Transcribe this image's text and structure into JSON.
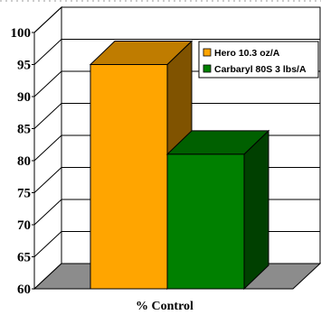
{
  "chart_data": {
    "type": "bar",
    "categories": [
      "% Control"
    ],
    "series": [
      {
        "name": "Hero 10.3 oz/A",
        "values": [
          95
        ],
        "color": "#FFA500"
      },
      {
        "name": "Carbaryl 80S 3 lbs/A",
        "values": [
          81
        ],
        "color": "#008000"
      }
    ],
    "title": "",
    "xlabel": "% Control",
    "ylabel": "",
    "ylim": [
      60,
      100
    ],
    "yticks": [
      60,
      65,
      70,
      75,
      80,
      85,
      90,
      95,
      100
    ],
    "grid": true,
    "legend": "top-right",
    "three_d": true
  }
}
